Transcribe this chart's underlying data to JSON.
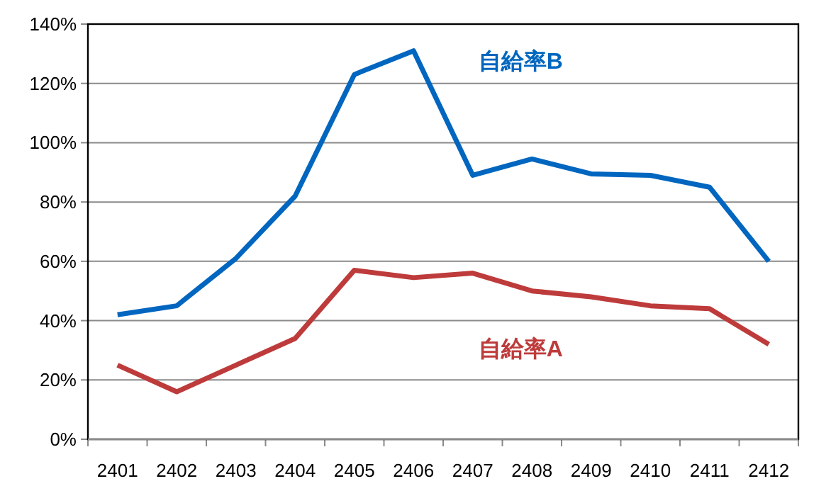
{
  "chart_data": {
    "type": "line",
    "categories": [
      "2401",
      "2402",
      "2403",
      "2404",
      "2405",
      "2406",
      "2407",
      "2408",
      "2409",
      "2410",
      "2411",
      "2412"
    ],
    "series": [
      {
        "name": "自給率B",
        "color": "#0066bf",
        "values": [
          42,
          45,
          61,
          82,
          123,
          131,
          89,
          94.5,
          89.5,
          89,
          85,
          60
        ]
      },
      {
        "name": "自給率A",
        "color": "#be3b3b",
        "values": [
          25,
          16,
          25,
          34,
          57,
          54.5,
          56,
          50,
          48,
          45,
          44,
          32
        ]
      }
    ],
    "ylim": [
      0,
      140
    ],
    "yticks": [
      {
        "value": 0,
        "label": "0%"
      },
      {
        "value": 20,
        "label": "20%"
      },
      {
        "value": 40,
        "label": "40%"
      },
      {
        "value": 60,
        "label": "60%"
      },
      {
        "value": 80,
        "label": "80%"
      },
      {
        "value": 100,
        "label": "100%"
      },
      {
        "value": 120,
        "label": "120%"
      },
      {
        "value": 140,
        "label": "140%"
      }
    ],
    "grid": "y",
    "marker": "none",
    "line_style": "solid"
  }
}
